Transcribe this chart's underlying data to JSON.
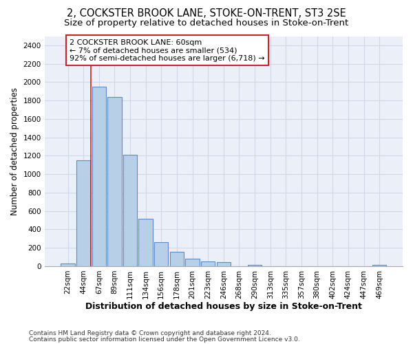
{
  "title": "2, COCKSTER BROOK LANE, STOKE-ON-TRENT, ST3 2SE",
  "subtitle": "Size of property relative to detached houses in Stoke-on-Trent",
  "xlabel": "Distribution of detached houses by size in Stoke-on-Trent",
  "ylabel": "Number of detached properties",
  "footer1": "Contains HM Land Registry data © Crown copyright and database right 2024.",
  "footer2": "Contains public sector information licensed under the Open Government Licence v3.0.",
  "categories": [
    "22sqm",
    "44sqm",
    "67sqm",
    "89sqm",
    "111sqm",
    "134sqm",
    "156sqm",
    "178sqm",
    "201sqm",
    "223sqm",
    "246sqm",
    "268sqm",
    "290sqm",
    "313sqm",
    "335sqm",
    "357sqm",
    "380sqm",
    "402sqm",
    "424sqm",
    "447sqm",
    "469sqm"
  ],
  "values": [
    30,
    1150,
    1950,
    1840,
    1210,
    515,
    265,
    155,
    80,
    50,
    45,
    0,
    15,
    0,
    0,
    0,
    0,
    0,
    0,
    0,
    15
  ],
  "bar_color": "#b8cfe8",
  "bar_edge_color": "#5b8cc8",
  "annotation_text_line1": "2 COCKSTER BROOK LANE: 60sqm",
  "annotation_text_line2": "← 7% of detached houses are smaller (534)",
  "annotation_text_line3": "92% of semi-detached houses are larger (6,718) →",
  "annotation_box_facecolor": "#ffffff",
  "annotation_box_edgecolor": "#cc2222",
  "red_line_x": 1.5,
  "ylim": [
    0,
    2500
  ],
  "yticks": [
    0,
    200,
    400,
    600,
    800,
    1000,
    1200,
    1400,
    1600,
    1800,
    2000,
    2200,
    2400
  ],
  "grid_color": "#d0d8e8",
  "bg_color": "#eaeff8",
  "title_fontsize": 10.5,
  "subtitle_fontsize": 9.5,
  "xlabel_fontsize": 9,
  "ylabel_fontsize": 8.5,
  "tick_fontsize": 7.5,
  "annotation_fontsize": 8,
  "footer_fontsize": 6.5
}
